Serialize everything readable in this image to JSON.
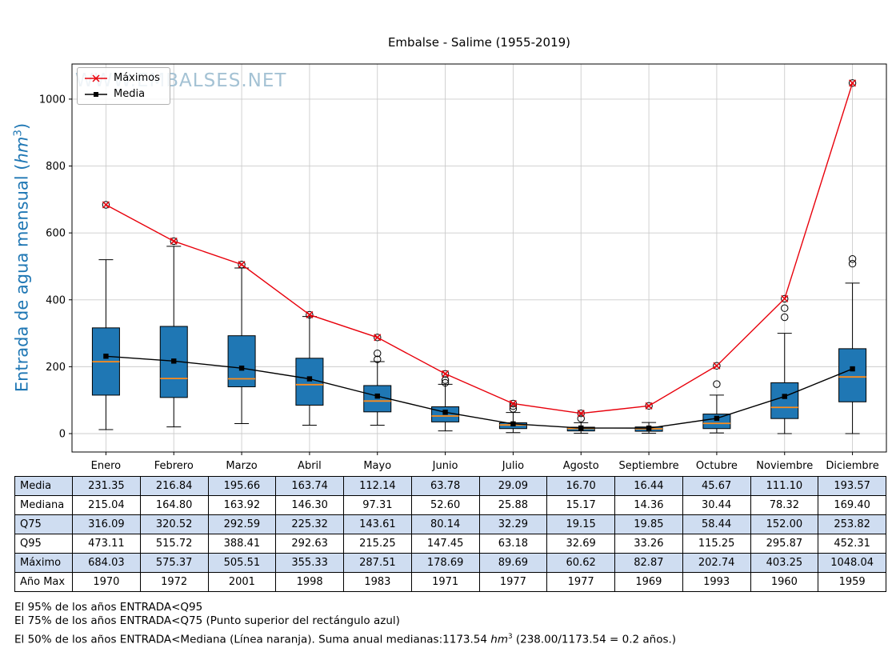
{
  "title": "Embalse - Salime (1955-2019)",
  "watermark": "WWW.EMBALSES.NET",
  "ylabel": {
    "text": "Entrada de agua mensual (",
    "math": "hm",
    "sup": "3",
    "close": ")"
  },
  "legend": {
    "maximos": "Máximos",
    "media": "Media"
  },
  "colors": {
    "box_fill": "#1f77b4",
    "median": "#ff8c1a",
    "maximos_line": "#e8000b",
    "media_line": "#000000",
    "ylabel": "#1f77b4",
    "watermark": "#a4c2d4",
    "table_shaded": "#cfddf1",
    "grid": "#cccccc"
  },
  "footer": {
    "note1": "El 95% de los años ENTRADA<Q95",
    "note2": "El 75% de los años ENTRADA<Q75 (Punto superior del rectángulo azul)",
    "note3_pre": "El 50% de los años ENTRADA<Mediana (Línea naranja). Suma anual medianas:1173.54 ",
    "note3_math": "hm",
    "note3_sup": "3",
    "note3_post": " (238.00/1173.54 = 0.2 años.)"
  },
  "chart_data": {
    "type": "boxplot",
    "title": "Embalse - Salime (1955-2019)",
    "ylabel": "Entrada de agua mensual (hm³)",
    "categories": [
      "Enero",
      "Febrero",
      "Marzo",
      "Abril",
      "Mayo",
      "Junio",
      "Julio",
      "Agosto",
      "Septiembre",
      "Octubre",
      "Noviembre",
      "Diciembre"
    ],
    "yticks": [
      0,
      200,
      400,
      600,
      800,
      1000
    ],
    "ylim": [
      -55,
      1105
    ],
    "grid": true,
    "legend_position": "upper-left",
    "series": [
      {
        "name": "Máximos",
        "type": "line",
        "color": "#e8000b",
        "marker": "x",
        "values": [
          684.03,
          575.37,
          505.51,
          355.33,
          287.51,
          178.69,
          89.69,
          60.62,
          82.87,
          202.74,
          403.25,
          1048.04
        ]
      },
      {
        "name": "Media",
        "type": "line",
        "color": "#000000",
        "marker": "square",
        "values": [
          231.35,
          216.84,
          195.66,
          163.74,
          112.14,
          63.78,
          29.09,
          16.7,
          16.44,
          45.67,
          111.1,
          193.57
        ]
      }
    ],
    "boxes": {
      "median": [
        215.04,
        164.8,
        163.92,
        146.3,
        97.31,
        52.6,
        25.88,
        15.17,
        14.36,
        30.44,
        78.32,
        169.4
      ],
      "q25": [
        115,
        108,
        140,
        85,
        65,
        35,
        15,
        8,
        7,
        15,
        45,
        95
      ],
      "q75": [
        316.09,
        320.52,
        292.59,
        225.32,
        143.61,
        80.14,
        32.29,
        19.15,
        19.85,
        58.44,
        152.0,
        253.82
      ],
      "whisker_low": [
        12,
        20,
        30,
        25,
        25,
        8,
        3,
        1,
        1,
        2,
        0,
        0
      ],
      "whisker_high": [
        520,
        560,
        495,
        350,
        215.25,
        147.45,
        63.18,
        32.69,
        33.26,
        115.25,
        300,
        450
      ],
      "outliers": [
        [
          684.03
        ],
        [
          575.37
        ],
        [
          505.51
        ],
        [
          355.33
        ],
        [
          222,
          240,
          287.51
        ],
        [
          152,
          160,
          178.69
        ],
        [
          74,
          82,
          89.69
        ],
        [
          45,
          60.62
        ],
        [
          82.87
        ],
        [
          148,
          202.74
        ],
        [
          348,
          375,
          403.25
        ],
        [
          508,
          522,
          1048.04
        ]
      ]
    },
    "table": {
      "row_labels": [
        "Media",
        "Mediana",
        "Q75",
        "Q95",
        "Máximo",
        "Año Max"
      ],
      "rows": [
        [
          "231.35",
          "216.84",
          "195.66",
          "163.74",
          "112.14",
          "63.78",
          "29.09",
          "16.70",
          "16.44",
          "45.67",
          "111.10",
          "193.57"
        ],
        [
          "215.04",
          "164.80",
          "163.92",
          "146.30",
          "97.31",
          "52.60",
          "25.88",
          "15.17",
          "14.36",
          "30.44",
          "78.32",
          "169.40"
        ],
        [
          "316.09",
          "320.52",
          "292.59",
          "225.32",
          "143.61",
          "80.14",
          "32.29",
          "19.15",
          "19.85",
          "58.44",
          "152.00",
          "253.82"
        ],
        [
          "473.11",
          "515.72",
          "388.41",
          "292.63",
          "215.25",
          "147.45",
          "63.18",
          "32.69",
          "33.26",
          "115.25",
          "295.87",
          "452.31"
        ],
        [
          "684.03",
          "575.37",
          "505.51",
          "355.33",
          "287.51",
          "178.69",
          "89.69",
          "60.62",
          "82.87",
          "202.74",
          "403.25",
          "1048.04"
        ],
        [
          "1970",
          "1972",
          "2001",
          "1998",
          "1983",
          "1971",
          "1977",
          "1977",
          "1969",
          "1993",
          "1960",
          "1959"
        ]
      ]
    }
  }
}
